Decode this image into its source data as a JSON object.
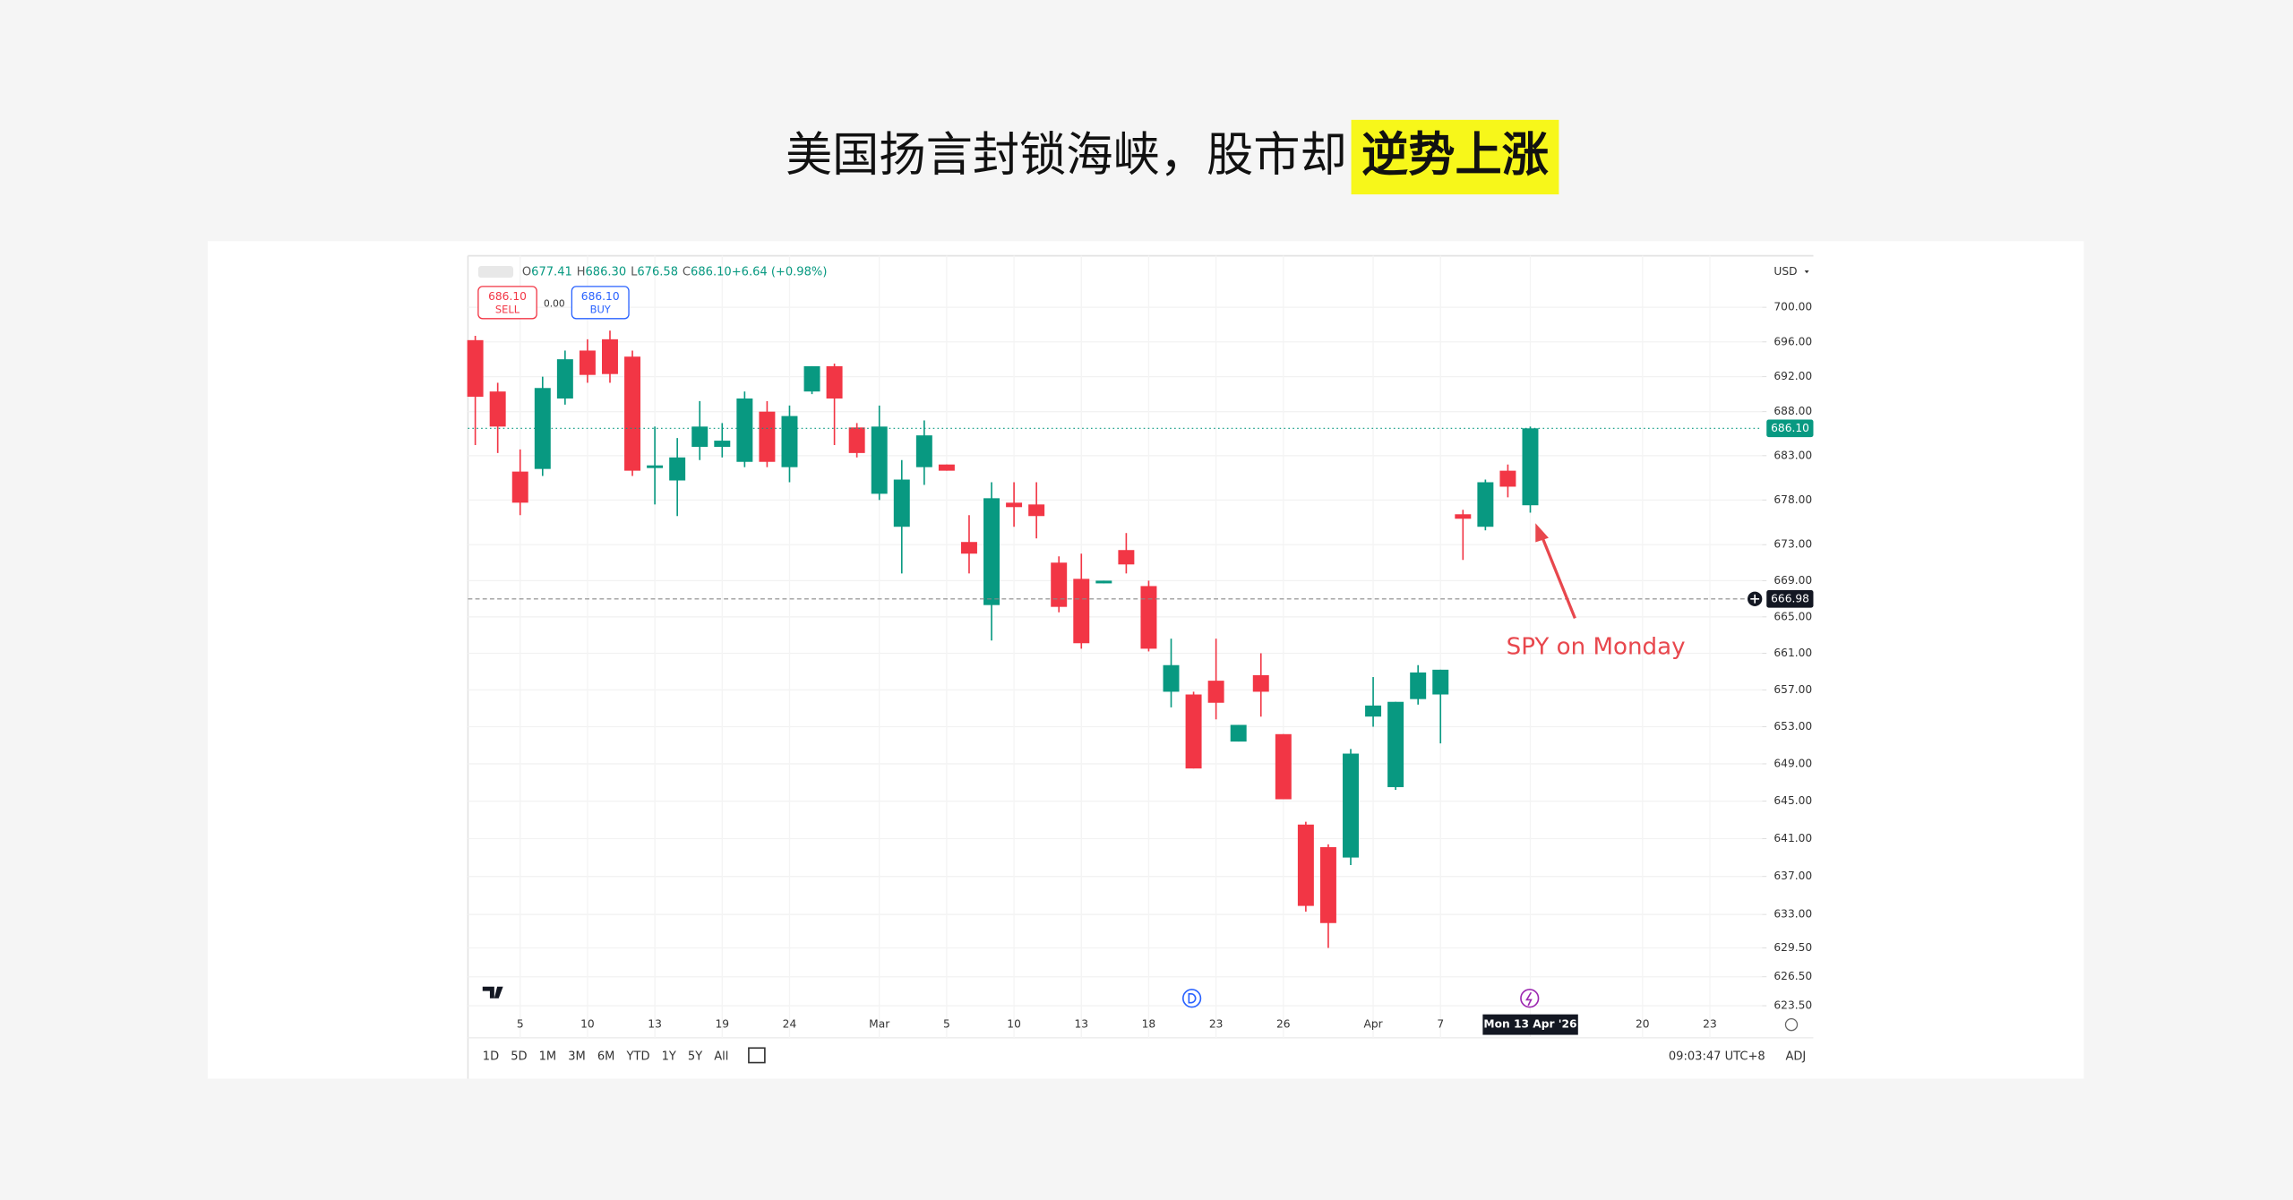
{
  "header": {
    "title": "美国扬言封锁海峡，股市却",
    "highlight": "逆势上涨"
  },
  "chart_data": {
    "type": "candlestick",
    "ohlc_header": [
      {
        "label": "O",
        "value": "677.41"
      },
      {
        "label": "H",
        "value": "686.30"
      },
      {
        "label": "L",
        "value": "676.58"
      },
      {
        "label": "C",
        "value": "686.10"
      },
      {
        "label": "",
        "value": "+6.64 (+0.98%)"
      }
    ],
    "trade": {
      "sell_price": "686.10",
      "sell": "SELL",
      "spread": "0.00",
      "buy_price": "686.10",
      "buy": "BUY"
    },
    "currency": "USD",
    "categories": [
      null,
      null,
      "5",
      null,
      null,
      "10",
      null,
      null,
      "13",
      null,
      null,
      "19",
      null,
      null,
      "24",
      null,
      null,
      null,
      "Mar",
      null,
      null,
      "5",
      null,
      null,
      "10",
      null,
      null,
      "13",
      null,
      null,
      "18",
      null,
      null,
      "23",
      null,
      null,
      "26",
      null,
      null,
      null,
      "Apr",
      null,
      null,
      "7",
      null,
      null,
      null,
      "Mon 13 Apr '26",
      null,
      null,
      null,
      null,
      "20",
      null,
      null,
      "23"
    ],
    "open": [
      696.2,
      690.3,
      681.2,
      681.5,
      689.5,
      695,
      696.3,
      694.3,
      681.6,
      680.2,
      684,
      684,
      682.3,
      688,
      681.7,
      690.3,
      693.2,
      686.2,
      678.7,
      675,
      681.7,
      682,
      673.3,
      666.3,
      677.7,
      677.5,
      671,
      669.2,
      668.7,
      672.4,
      668.4,
      656.8,
      656.5,
      658,
      651.4,
      658.6,
      652.2,
      642.5,
      640.1,
      639,
      654.1,
      646.5,
      656,
      656.5,
      676.4,
      675,
      681.3,
      677.41,
      null,
      null,
      null,
      null,
      null,
      null,
      null,
      null
    ],
    "high": [
      696.7,
      691.3,
      683.7,
      692,
      695,
      696.3,
      697.3,
      695,
      686.3,
      685,
      689.2,
      686.7,
      690.3,
      689.2,
      688.7,
      693.2,
      693.5,
      686.7,
      688.7,
      682.5,
      687,
      682,
      676.3,
      680,
      680,
      680,
      671.7,
      672,
      669,
      674.3,
      669,
      662.6,
      656.8,
      662.6,
      653.2,
      661,
      652.2,
      642.8,
      640.4,
      650.6,
      658.4,
      655.7,
      659.7,
      659.2,
      676.9,
      680.3,
      682,
      686.3,
      null,
      null,
      null,
      null,
      null,
      null,
      null,
      null
    ],
    "low": [
      684.2,
      683.3,
      676.3,
      680.7,
      688.8,
      691.3,
      691.3,
      680.7,
      677.5,
      676.2,
      682.5,
      682.8,
      681.7,
      681.7,
      680,
      690,
      684.2,
      682.8,
      678,
      669.8,
      679.7,
      681.3,
      669.8,
      662.4,
      675,
      673.7,
      665.5,
      661.5,
      668.7,
      669.8,
      661.2,
      655.1,
      648.5,
      653.8,
      651.4,
      654.1,
      645.2,
      633.3,
      629.5,
      638.2,
      653,
      646.2,
      655.4,
      651.2,
      671.3,
      674.6,
      678.3,
      676.58,
      null,
      null,
      null,
      null,
      null,
      null,
      null,
      null
    ],
    "close": [
      689.7,
      686.3,
      677.7,
      690.7,
      694,
      692.2,
      692.3,
      681.3,
      681.9,
      682.8,
      686.3,
      684.7,
      689.5,
      682.3,
      687.5,
      693.2,
      689.5,
      683.3,
      686.3,
      680.3,
      685.3,
      681.3,
      672,
      678.2,
      677.2,
      676.2,
      666.1,
      662.1,
      669,
      670.8,
      661.5,
      659.7,
      648.5,
      655.6,
      653.2,
      656.8,
      645.2,
      633.9,
      632.1,
      650.1,
      655.3,
      655.7,
      658.9,
      659.2,
      675.9,
      680,
      679.5,
      686.1,
      null,
      null,
      null,
      null,
      null,
      null,
      null,
      null
    ],
    "up_color": "#089981",
    "down_color": "#f23645",
    "log_scale": true,
    "grid": true,
    "ylim": [
      620.2,
      706
    ],
    "yticks": [
      {
        "value": 700,
        "label": "700.00"
      },
      {
        "value": 696,
        "label": "696.00"
      },
      {
        "value": 692,
        "label": "692.00"
      },
      {
        "value": 688,
        "label": "688.00"
      },
      {
        "value": 683,
        "label": "683.00"
      },
      {
        "value": 678,
        "label": "678.00"
      },
      {
        "value": 673,
        "label": "673.00"
      },
      {
        "value": 669,
        "label": "669.00"
      },
      {
        "value": 665,
        "label": "665.00"
      },
      {
        "value": 661,
        "label": "661.00"
      },
      {
        "value": 657,
        "label": "657.00"
      },
      {
        "value": 653,
        "label": "653.00"
      },
      {
        "value": 649,
        "label": "649.00"
      },
      {
        "value": 645,
        "label": "645.00"
      },
      {
        "value": 641,
        "label": "641.00"
      },
      {
        "value": 637,
        "label": "637.00"
      },
      {
        "value": 633,
        "label": "633.00"
      },
      {
        "value": 629.5,
        "label": "629.50"
      },
      {
        "value": 626.5,
        "label": "626.50"
      },
      {
        "value": 623.5,
        "label": "623.50"
      }
    ],
    "price_tags": [
      {
        "value": 686.1,
        "label": "686.10",
        "color": "#089981"
      },
      {
        "value": 666.98,
        "label": "666.98",
        "color": "#131722"
      }
    ],
    "annotation": {
      "text": "SPY on Monday",
      "color": "#e8474d"
    },
    "timeframes": [
      "1D",
      "5D",
      "1M",
      "3M",
      "6M",
      "YTD",
      "1Y",
      "5Y",
      "All"
    ],
    "clock": "09:03:47 UTC+8",
    "adj": "ADJ"
  }
}
